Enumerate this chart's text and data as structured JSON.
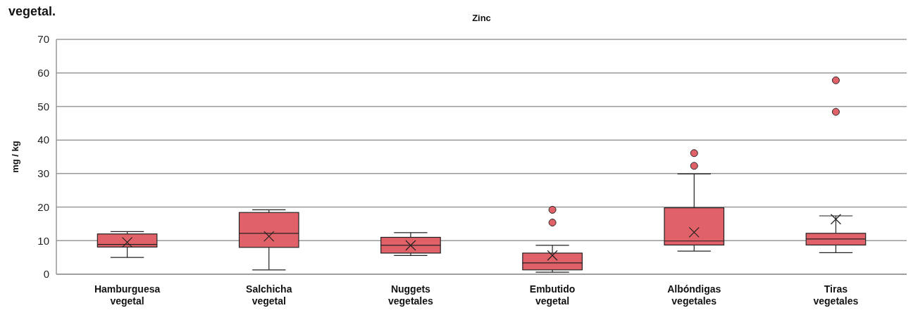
{
  "chart_data": {
    "type": "box",
    "title": "vegetal.",
    "subtitle": "Zinc",
    "ylabel": "mg / kg",
    "categories": [
      "Hamburguesa vegetal",
      "Salchicha vegetal",
      "Nuggets vegetales",
      "Embutido vegetal",
      "Albóndigas vegetales",
      "Tiras vegetales"
    ],
    "boxes": [
      {
        "low": 5.0,
        "q1": 8.1,
        "median": 8.9,
        "q3": 12.0,
        "high": 12.7,
        "mean": 9.5
      },
      {
        "low": 1.3,
        "q1": 8.0,
        "median": 12.2,
        "q3": 18.4,
        "high": 19.2,
        "mean": 11.3
      },
      {
        "low": 5.6,
        "q1": 6.3,
        "median": 8.6,
        "q3": 11.0,
        "high": 12.4,
        "mean": 8.6
      },
      {
        "low": 0.6,
        "q1": 1.3,
        "median": 3.4,
        "q3": 6.3,
        "high": 8.6,
        "mean": 5.6,
        "outliers": [
          15.4,
          19.2
        ]
      },
      {
        "low": 6.9,
        "q1": 8.7,
        "median": 9.9,
        "q3": 19.8,
        "high": 29.9,
        "mean": 12.5,
        "outliers": [
          32.3,
          36.1
        ]
      },
      {
        "low": 6.4,
        "q1": 8.7,
        "median": 10.5,
        "q3": 12.2,
        "high": 17.4,
        "mean": 16.4,
        "outliers": [
          48.4,
          57.8
        ]
      }
    ],
    "color": "#e06168",
    "ylim": [
      0,
      70
    ],
    "yticks": [
      0,
      10,
      20,
      30,
      40,
      50,
      60,
      70
    ],
    "grid": "y"
  }
}
